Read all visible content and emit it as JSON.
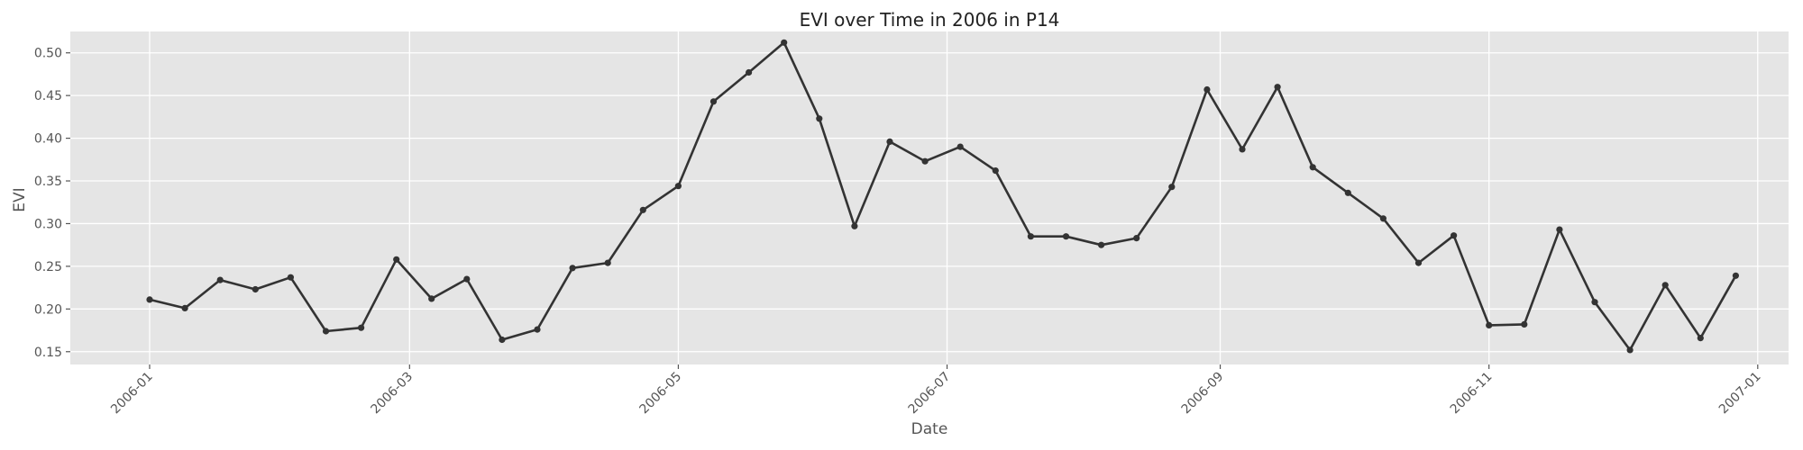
{
  "chart_data": {
    "type": "line",
    "title": "EVI over Time in 2006 in P14",
    "xlabel": "Date",
    "ylabel": "EVI",
    "x_range": [
      "2005-12-14",
      "2007-01-08"
    ],
    "ylim": [
      0.135,
      0.525
    ],
    "x_ticks": [
      "2006-01",
      "2006-03",
      "2006-05",
      "2006-07",
      "2006-09",
      "2006-11",
      "2007-01"
    ],
    "y_ticks": [
      "0.15",
      "0.20",
      "0.25",
      "0.30",
      "0.35",
      "0.40",
      "0.45",
      "0.50"
    ],
    "grid": true,
    "line_color": "#333333",
    "background_color": "#e5e5e5",
    "series": [
      {
        "x": [
          "2006-01-01",
          "2006-01-09",
          "2006-01-17",
          "2006-01-25",
          "2006-02-02",
          "2006-02-10",
          "2006-02-18",
          "2006-02-26",
          "2006-03-06",
          "2006-03-14",
          "2006-03-22",
          "2006-03-30",
          "2006-04-07",
          "2006-04-15",
          "2006-04-23",
          "2006-05-01",
          "2006-05-09",
          "2006-05-17",
          "2006-05-25",
          "2006-06-02",
          "2006-06-10",
          "2006-06-18",
          "2006-06-26",
          "2006-07-04",
          "2006-07-12",
          "2006-07-20",
          "2006-07-28",
          "2006-08-05",
          "2006-08-13",
          "2006-08-21",
          "2006-08-29",
          "2006-09-06",
          "2006-09-14",
          "2006-09-22",
          "2006-09-30",
          "2006-10-08",
          "2006-10-16",
          "2006-10-24",
          "2006-11-01",
          "2006-11-09",
          "2006-11-17",
          "2006-11-25",
          "2006-12-03",
          "2006-12-11",
          "2006-12-19",
          "2006-12-27"
        ],
        "y": [
          0.211,
          0.201,
          0.234,
          0.223,
          0.237,
          0.174,
          0.178,
          0.258,
          0.212,
          0.235,
          0.164,
          0.176,
          0.248,
          0.254,
          0.316,
          0.344,
          0.443,
          0.477,
          0.512,
          0.423,
          0.297,
          0.396,
          0.373,
          0.39,
          0.362,
          0.285,
          0.285,
          0.275,
          0.283,
          0.343,
          0.457,
          0.387,
          0.46,
          0.366,
          0.336,
          0.306,
          0.254,
          0.286,
          0.181,
          0.182,
          0.293,
          0.208,
          0.152,
          0.228,
          0.166,
          0.239
        ]
      }
    ]
  }
}
